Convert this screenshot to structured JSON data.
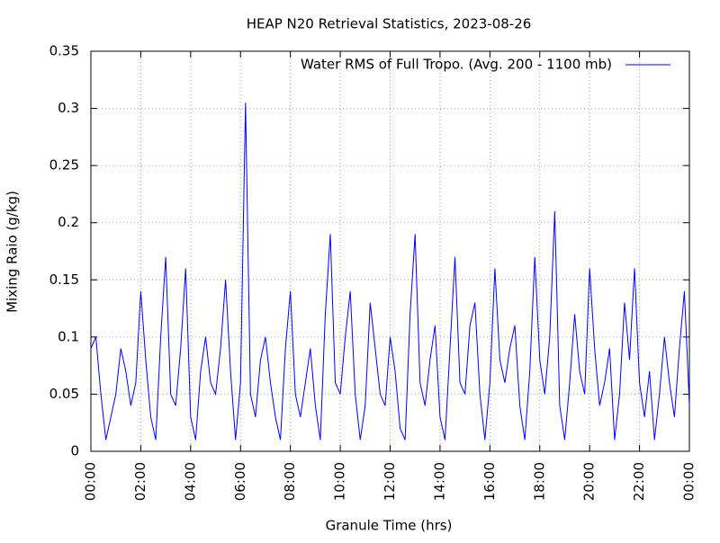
{
  "chart_data": {
    "type": "line",
    "title": "HEAP N20 Retrieval Statistics, 2023-08-26",
    "x_label": "Granule Time (hrs)",
    "y_label": "Mixing Raio (g/kg)",
    "legend_position": "top-right",
    "grid": true,
    "xlim": [
      0,
      24
    ],
    "ylim": [
      0,
      0.35
    ],
    "yticks": [
      0,
      0.05,
      0.1,
      0.15,
      0.2,
      0.25,
      0.3,
      0.35
    ],
    "xticks": [
      {
        "value": 0,
        "label": "00:00"
      },
      {
        "value": 2,
        "label": "02:00"
      },
      {
        "value": 4,
        "label": "04:00"
      },
      {
        "value": 6,
        "label": "06:00"
      },
      {
        "value": 8,
        "label": "08:00"
      },
      {
        "value": 10,
        "label": "10:00"
      },
      {
        "value": 12,
        "label": "12:00"
      },
      {
        "value": 14,
        "label": "14:00"
      },
      {
        "value": 16,
        "label": "16:00"
      },
      {
        "value": 18,
        "label": "18:00"
      },
      {
        "value": 20,
        "label": "20:00"
      },
      {
        "value": 22,
        "label": "22:00"
      },
      {
        "value": 24,
        "label": "00:00"
      }
    ],
    "x": [
      0,
      0.2,
      0.4,
      0.6,
      0.8,
      1.0,
      1.2,
      1.4,
      1.6,
      1.8,
      2.0,
      2.2,
      2.4,
      2.6,
      2.8,
      3.0,
      3.2,
      3.4,
      3.6,
      3.8,
      4.0,
      4.2,
      4.4,
      4.6,
      4.8,
      5.0,
      5.2,
      5.4,
      5.6,
      5.8,
      6.0,
      6.2,
      6.4,
      6.6,
      6.8,
      7.0,
      7.2,
      7.4,
      7.6,
      7.8,
      8.0,
      8.2,
      8.4,
      8.6,
      8.8,
      9.0,
      9.2,
      9.4,
      9.6,
      9.8,
      10.0,
      10.2,
      10.4,
      10.6,
      10.8,
      11.0,
      11.2,
      11.4,
      11.6,
      11.8,
      12.0,
      12.2,
      12.4,
      12.6,
      12.8,
      13.0,
      13.2,
      13.4,
      13.6,
      13.8,
      14.0,
      14.2,
      14.4,
      14.6,
      14.8,
      15.0,
      15.2,
      15.4,
      15.6,
      15.8,
      16.0,
      16.2,
      16.4,
      16.6,
      16.8,
      17.0,
      17.2,
      17.4,
      17.6,
      17.8,
      18.0,
      18.2,
      18.4,
      18.6,
      18.8,
      19.0,
      19.2,
      19.4,
      19.6,
      19.8,
      20.0,
      20.2,
      20.4,
      20.6,
      20.8,
      21.0,
      21.2,
      21.4,
      21.6,
      21.8,
      22.0,
      22.2,
      22.4,
      22.6,
      22.8,
      23.0,
      23.2,
      23.4,
      23.6,
      23.8,
      24.0
    ],
    "series": [
      {
        "name": "Water RMS of Full Tropo. (Avg. 200 - 1100 mb)",
        "color": "#0000ff",
        "values": [
          0.09,
          0.1,
          0.05,
          0.01,
          0.03,
          0.05,
          0.09,
          0.07,
          0.04,
          0.06,
          0.14,
          0.08,
          0.03,
          0.01,
          0.1,
          0.17,
          0.05,
          0.04,
          0.09,
          0.16,
          0.03,
          0.01,
          0.07,
          0.1,
          0.06,
          0.05,
          0.09,
          0.15,
          0.07,
          0.01,
          0.06,
          0.305,
          0.05,
          0.03,
          0.08,
          0.1,
          0.06,
          0.03,
          0.01,
          0.09,
          0.14,
          0.05,
          0.03,
          0.06,
          0.09,
          0.04,
          0.01,
          0.12,
          0.19,
          0.06,
          0.05,
          0.1,
          0.14,
          0.05,
          0.01,
          0.04,
          0.13,
          0.09,
          0.05,
          0.04,
          0.1,
          0.07,
          0.02,
          0.01,
          0.12,
          0.19,
          0.06,
          0.04,
          0.08,
          0.11,
          0.03,
          0.01,
          0.09,
          0.17,
          0.06,
          0.05,
          0.11,
          0.13,
          0.05,
          0.01,
          0.06,
          0.16,
          0.08,
          0.06,
          0.09,
          0.11,
          0.04,
          0.01,
          0.07,
          0.17,
          0.08,
          0.05,
          0.1,
          0.21,
          0.04,
          0.01,
          0.06,
          0.12,
          0.07,
          0.05,
          0.16,
          0.09,
          0.04,
          0.06,
          0.09,
          0.01,
          0.05,
          0.13,
          0.08,
          0.16,
          0.06,
          0.03,
          0.07,
          0.01,
          0.05,
          0.1,
          0.06,
          0.03,
          0.09,
          0.14,
          0.04
        ]
      }
    ]
  }
}
